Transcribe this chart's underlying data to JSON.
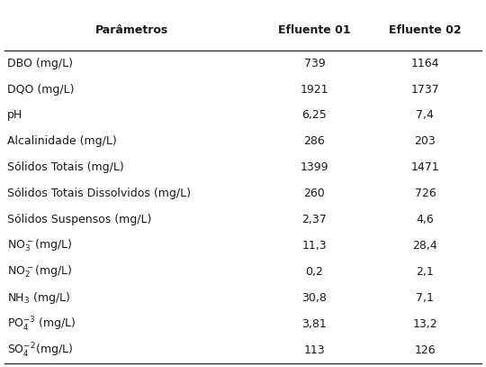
{
  "col_headers": [
    "Parâmetros",
    "Efluente 01",
    "Efluente 02"
  ],
  "rich_labels": [
    "DBO (mg/L)",
    "DQO (mg/L)",
    "pH",
    "Alcalinidade (mg/L)",
    "Sólidos Totais (mg/L)",
    "Sólidos Totais Dissolvidos (mg/L)",
    "Sólidos Suspensos (mg/L)",
    "NO$_3^-$(mg/L)",
    "NO$_2^-$(mg/L)",
    "NH$_3$ (mg/L)",
    "PO$_4^{-3}$ (mg/L)",
    "SO$_4^{-2}$(mg/L)"
  ],
  "col1": [
    "739",
    "1921",
    "6,25",
    "286",
    "1399",
    "260",
    "2,37",
    "11,3",
    "0,2",
    "30,8",
    "3,81",
    "113"
  ],
  "col2": [
    "1164",
    "1737",
    "7,4",
    "203",
    "1471",
    "726",
    "4,6",
    "28,4",
    "2,1",
    "7,1",
    "13,2",
    "126"
  ],
  "bg_color": "#ffffff",
  "text_color": "#1a1a1a",
  "header_fontsize": 9.0,
  "cell_fontsize": 9.0,
  "line_color": "#333333",
  "figsize": [
    5.4,
    4.07
  ],
  "dpi": 100
}
